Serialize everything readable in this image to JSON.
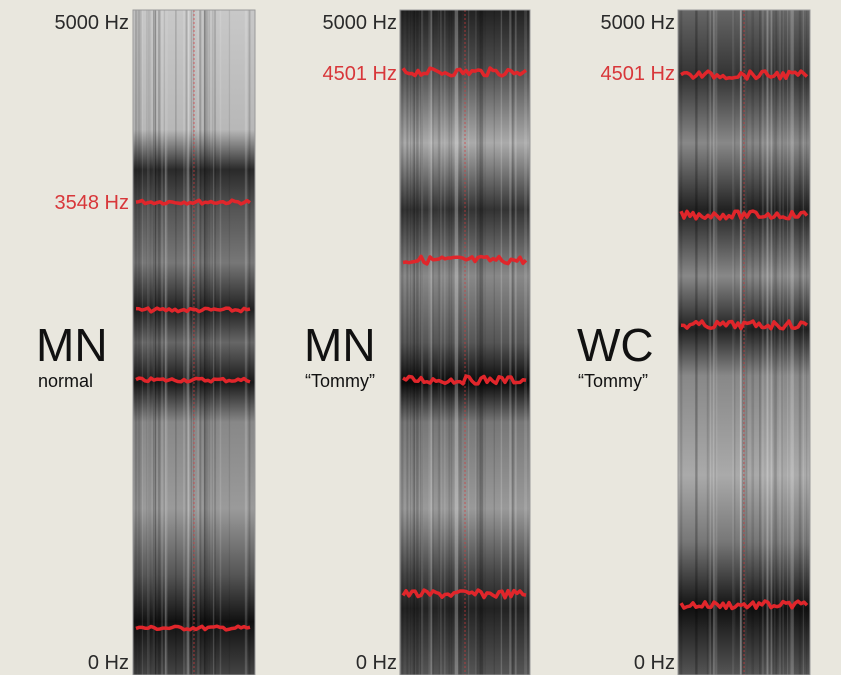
{
  "panels": [
    {
      "top_label": "5000 Hz",
      "marked_label": "3548 Hz",
      "bottom_label": "0 Hz",
      "speaker": "MN",
      "condition": "normal"
    },
    {
      "top_label": "5000 Hz",
      "marked_label": "4501 Hz",
      "bottom_label": "0 Hz",
      "speaker": "MN",
      "condition": "“Tommy”"
    },
    {
      "top_label": "5000 Hz",
      "marked_label": "4501 Hz",
      "bottom_label": "0 Hz",
      "speaker": "WC",
      "condition": "“Tommy”"
    }
  ]
}
